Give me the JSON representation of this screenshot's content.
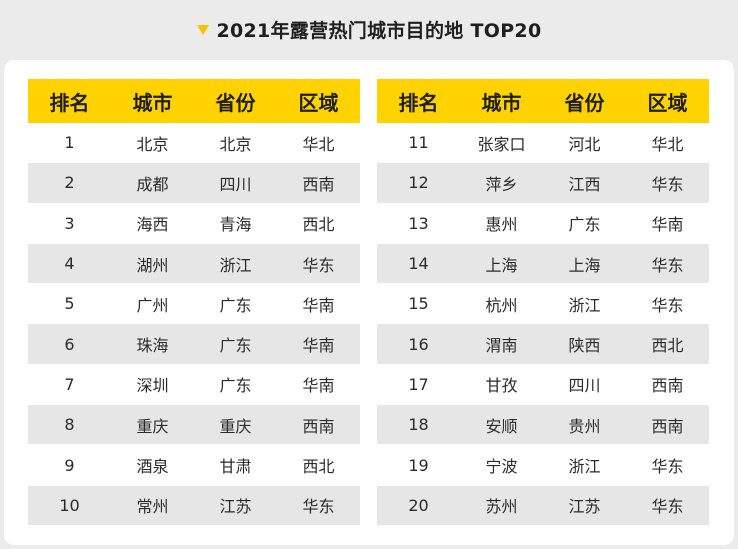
{
  "title": "2021年露营热门城市目的地 TOP20",
  "accent_color": "#ffd200",
  "headers": [
    "排名",
    "城市",
    "省份",
    "区域"
  ],
  "rows": [
    [
      "1",
      "北京",
      "北京",
      "华北"
    ],
    [
      "2",
      "成都",
      "四川",
      "西南"
    ],
    [
      "3",
      "海西",
      "青海",
      "西北"
    ],
    [
      "4",
      "湖州",
      "浙江",
      "华东"
    ],
    [
      "5",
      "广州",
      "广东",
      "华南"
    ],
    [
      "6",
      "珠海",
      "广东",
      "华南"
    ],
    [
      "7",
      "深圳",
      "广东",
      "华南"
    ],
    [
      "8",
      "重庆",
      "重庆",
      "西南"
    ],
    [
      "9",
      "酒泉",
      "甘肃",
      "西北"
    ],
    [
      "10",
      "常州",
      "江苏",
      "华东"
    ],
    [
      "11",
      "张家口",
      "河北",
      "华北"
    ],
    [
      "12",
      "萍乡",
      "江西",
      "华东"
    ],
    [
      "13",
      "惠州",
      "广东",
      "华南"
    ],
    [
      "14",
      "上海",
      "上海",
      "华东"
    ],
    [
      "15",
      "杭州",
      "浙江",
      "华东"
    ],
    [
      "16",
      "渭南",
      "陕西",
      "西北"
    ],
    [
      "17",
      "甘孜",
      "四川",
      "西南"
    ],
    [
      "18",
      "安顺",
      "贵州",
      "西南"
    ],
    [
      "19",
      "宁波",
      "浙江",
      "华东"
    ],
    [
      "20",
      "苏州",
      "江苏",
      "华东"
    ]
  ]
}
